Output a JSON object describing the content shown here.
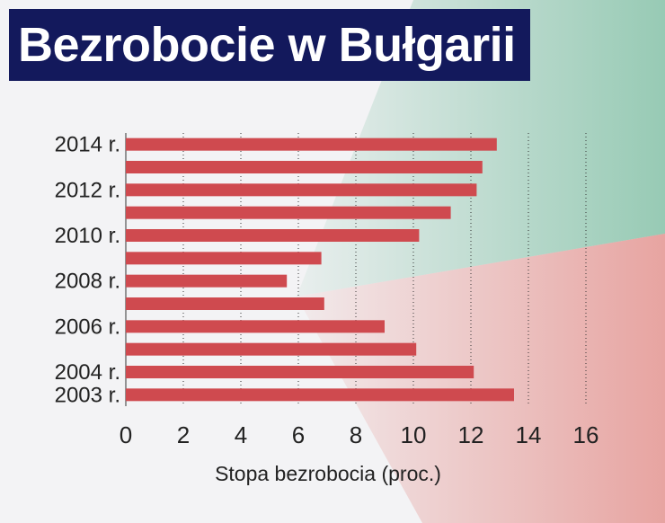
{
  "title": "Bezrobocie w Bułgarii",
  "colors": {
    "title_bg": "#13195c",
    "bar": "#cf4a4f",
    "flag_white": "#ffffff",
    "flag_green": "#2e9a6a",
    "flag_red": "#d8493f"
  },
  "chart_data": {
    "type": "bar",
    "orientation": "horizontal",
    "title": "Bezrobocie w Bułgarii",
    "xlabel": "Stopa bezrobocia (proc.)",
    "ylabel": "",
    "xlim": [
      0,
      16
    ],
    "xticks": [
      0,
      2,
      4,
      6,
      8,
      10,
      12,
      14,
      16
    ],
    "grid": "vertical-dotted",
    "categories": [
      "2014",
      "2013",
      "2012",
      "2011",
      "2010",
      "2009",
      "2008",
      "2007",
      "2006",
      "2005",
      "2004",
      "2003"
    ],
    "category_labels": [
      "2014 r.",
      "",
      "2012 r.",
      "",
      "2010 r.",
      "",
      "2008 r.",
      "",
      "2006 r.",
      "",
      "2004 r.",
      "2003 r."
    ],
    "values": [
      12.9,
      12.4,
      12.2,
      11.3,
      10.2,
      6.8,
      5.6,
      6.9,
      9.0,
      10.1,
      12.1,
      13.5
    ]
  }
}
